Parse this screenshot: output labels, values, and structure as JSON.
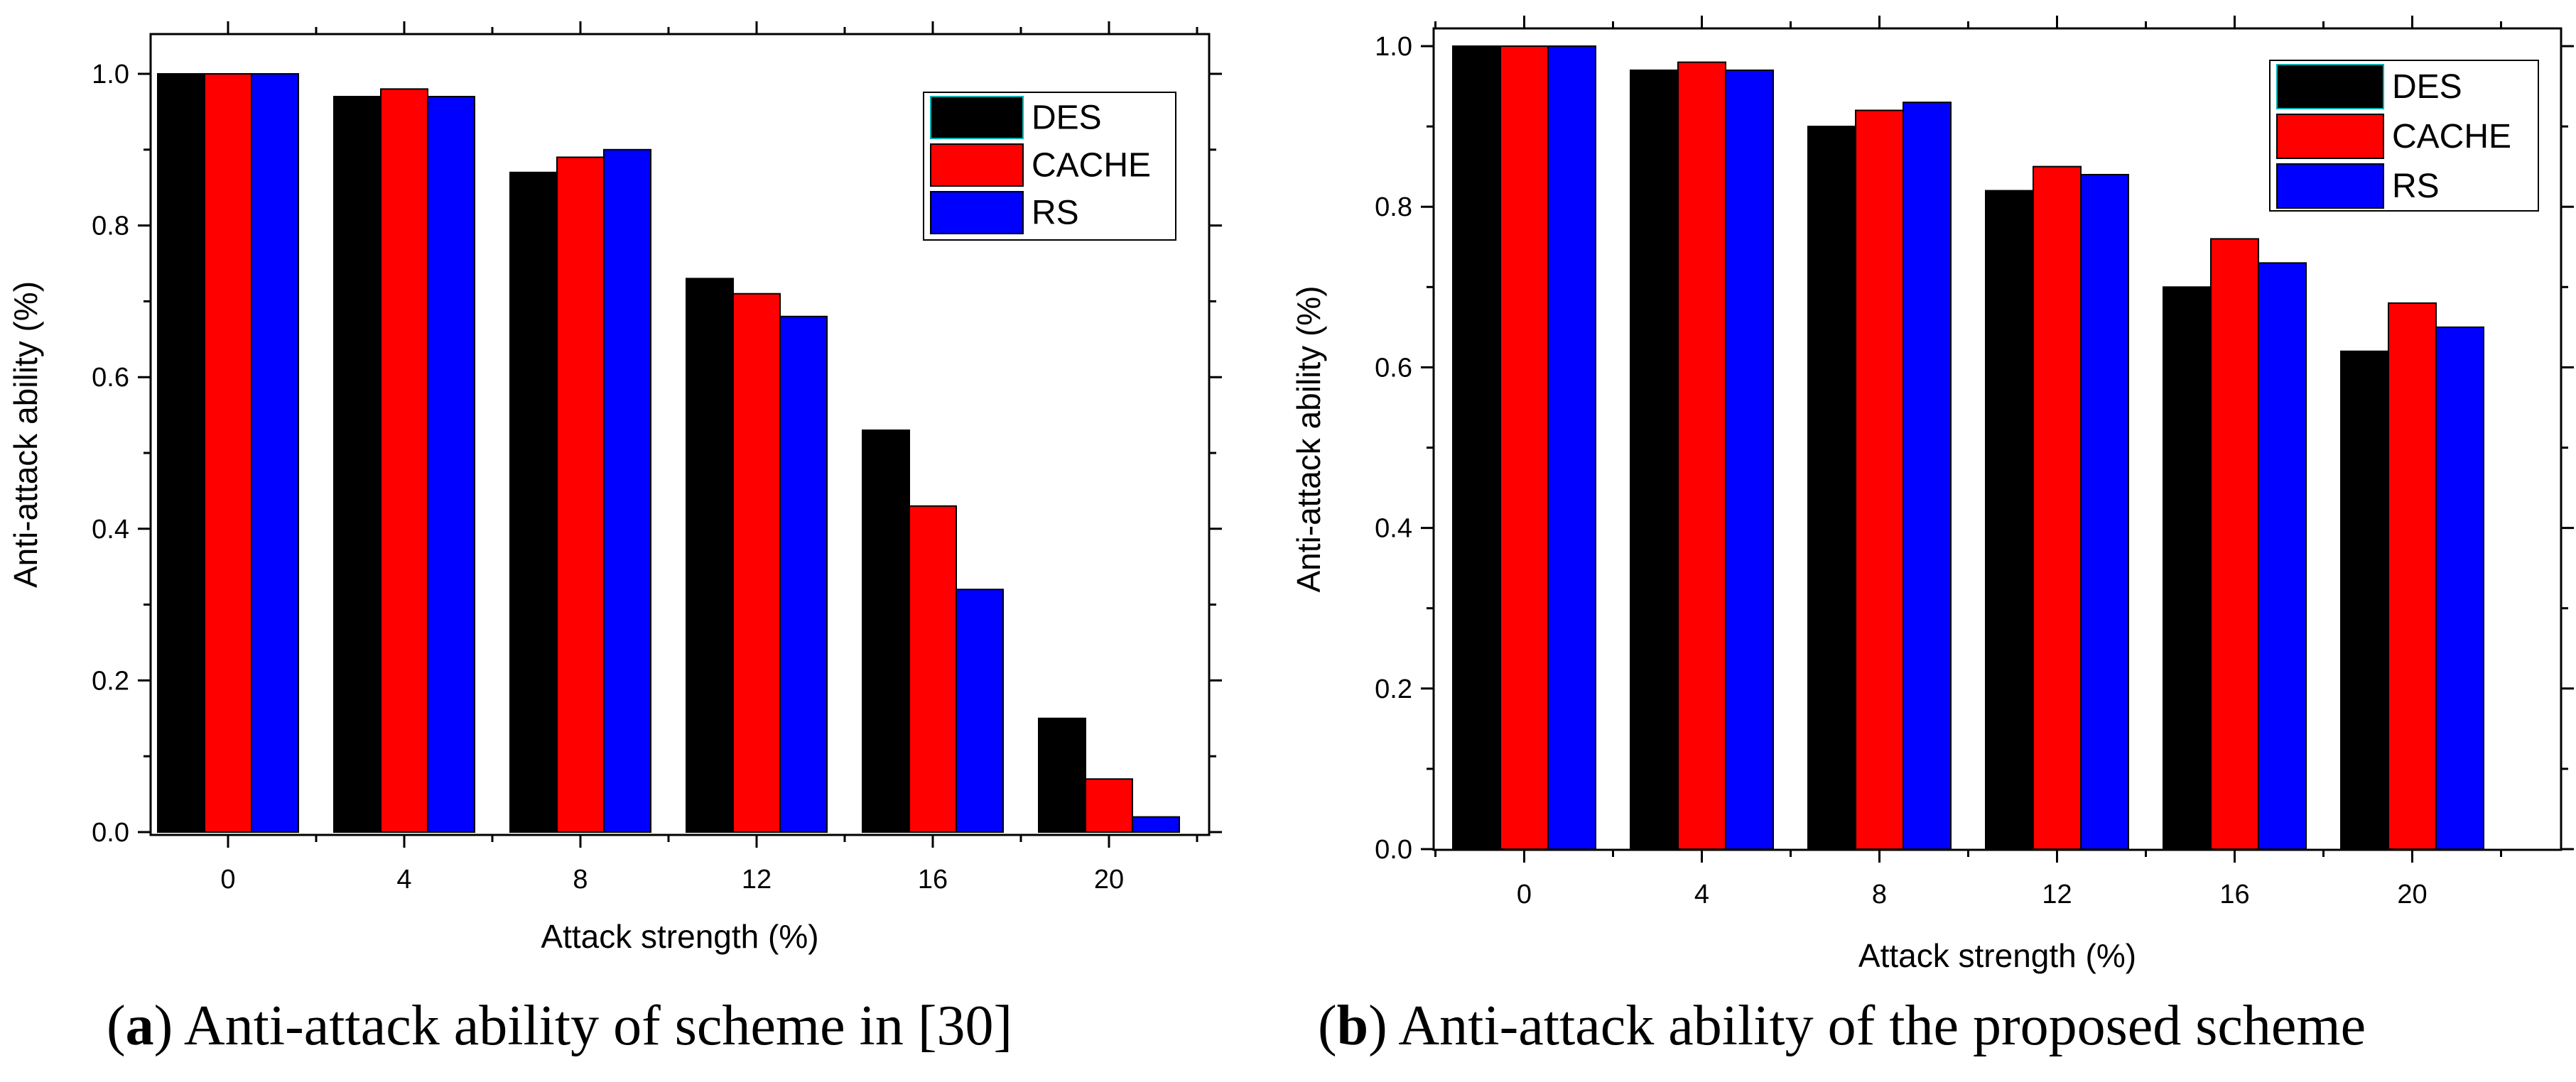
{
  "chart_data": [
    {
      "type": "bar",
      "panel": "a",
      "categories": [
        "0",
        "4",
        "8",
        "12",
        "16",
        "20"
      ],
      "series": [
        {
          "name": "DES",
          "color": "#000000",
          "values": [
            1.0,
            0.97,
            0.87,
            0.73,
            0.53,
            0.15
          ]
        },
        {
          "name": "CACHE",
          "color": "#ff0000",
          "values": [
            1.0,
            0.98,
            0.89,
            0.71,
            0.43,
            0.07
          ]
        },
        {
          "name": "RS",
          "color": "#0000ff",
          "values": [
            1.0,
            0.97,
            0.9,
            0.68,
            0.32,
            0.02
          ]
        }
      ],
      "xlabel": "Attack strength (%)",
      "ylabel": "Anti-attack ability (%)",
      "ylim": [
        0,
        1.0
      ],
      "yticks": [
        "0.0",
        "0.2",
        "0.4",
        "0.6",
        "0.8",
        "1.0"
      ],
      "legend_position": "top-right",
      "caption_letter": "a",
      "caption_text": ") Anti-attack ability of scheme in [30]"
    },
    {
      "type": "bar",
      "panel": "b",
      "categories": [
        "0",
        "4",
        "8",
        "12",
        "16",
        "20"
      ],
      "series": [
        {
          "name": "DES",
          "color": "#000000",
          "values": [
            1.0,
            0.97,
            0.9,
            0.82,
            0.7,
            0.62
          ]
        },
        {
          "name": "CACHE",
          "color": "#ff0000",
          "values": [
            1.0,
            0.98,
            0.92,
            0.85,
            0.76,
            0.68
          ]
        },
        {
          "name": "RS",
          "color": "#0000ff",
          "values": [
            1.0,
            0.97,
            0.93,
            0.84,
            0.73,
            0.65
          ]
        }
      ],
      "xlabel": "Attack strength (%)",
      "ylabel": "Anti-attack ability (%)",
      "ylim": [
        0,
        1.0
      ],
      "yticks": [
        "0.0",
        "0.2",
        "0.4",
        "0.6",
        "0.8",
        "1.0"
      ],
      "legend_position": "top-right",
      "caption_letter": "b",
      "caption_text": ") Anti-attack ability of the proposed scheme"
    }
  ],
  "styles": {
    "legend_swatch_border": "#00b0b0"
  }
}
